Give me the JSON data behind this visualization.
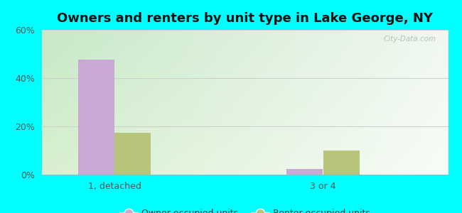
{
  "title": "Owners and renters by unit type in Lake George, NY",
  "categories": [
    "1, detached",
    "3 or 4"
  ],
  "owner_values": [
    47.5,
    2.5
  ],
  "renter_values": [
    17.5,
    10.0
  ],
  "owner_color": "#c9a8d4",
  "renter_color": "#b8c47a",
  "ylim": [
    0,
    0.6
  ],
  "yticks": [
    0.0,
    0.2,
    0.4,
    0.6
  ],
  "ytick_labels": [
    "0%",
    "20%",
    "40%",
    "60%"
  ],
  "background_color": "#00ffff",
  "legend_owner": "Owner occupied units",
  "legend_renter": "Renter occupied units",
  "watermark": "City-Data.com",
  "bar_width": 0.35,
  "group_positions": [
    1,
    3
  ],
  "title_fontsize": 13,
  "tick_fontsize": 9,
  "legend_fontsize": 9
}
